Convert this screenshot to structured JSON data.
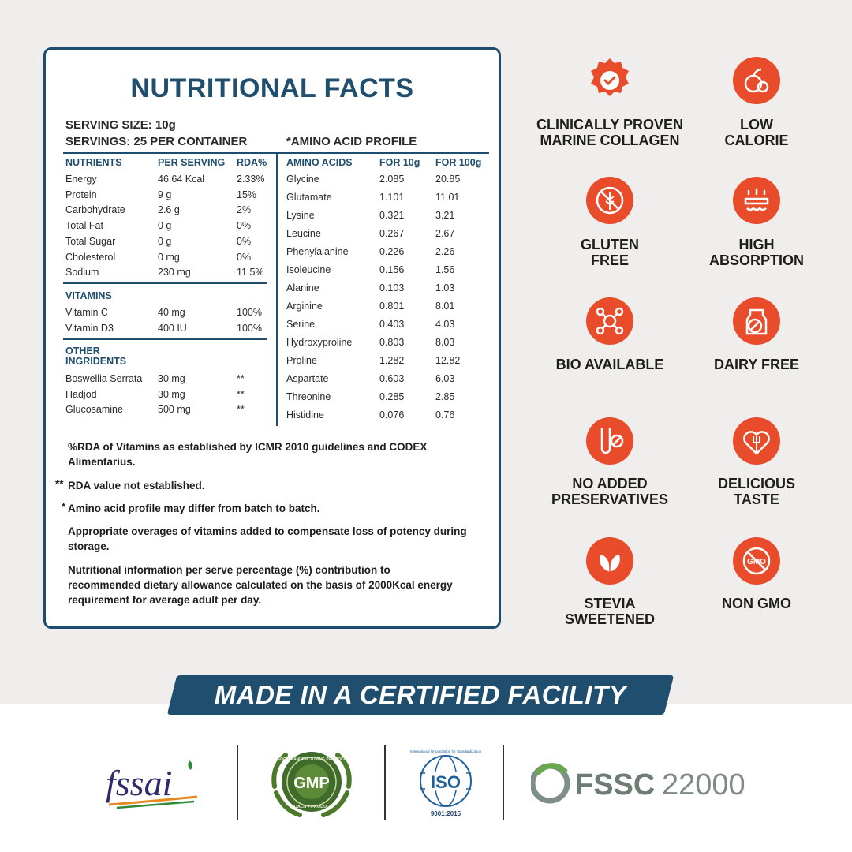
{
  "panel": {
    "title": "NUTRITIONAL FACTS",
    "serving_size": "SERVING SIZE: 10g",
    "servings": "SERVINGS: 25 PER CONTAINER",
    "amino_title": "*AMINO ACID PROFILE",
    "nutrients_headers": [
      "NUTRIENTS",
      "PER SERVING",
      "RDA%"
    ],
    "nutrients": [
      [
        "Energy",
        "46.64 Kcal",
        "2.33%"
      ],
      [
        "Protein",
        "9 g",
        "15%"
      ],
      [
        "Carbohydrate",
        "2.6 g",
        "2%"
      ],
      [
        "Total Fat",
        "0 g",
        "0%"
      ],
      [
        "Total Sugar",
        "0 g",
        "0%"
      ],
      [
        "Cholesterol",
        "0 mg",
        "0%"
      ],
      [
        "Sodium",
        "230 mg",
        "11.5%"
      ]
    ],
    "vitamins_header": "VITAMINS",
    "vitamins": [
      [
        "Vitamin C",
        "40 mg",
        "100%"
      ],
      [
        "Vitamin D3",
        "400 IU",
        "100%"
      ]
    ],
    "other_header": [
      "OTHER",
      "INGRIDENTS"
    ],
    "other": [
      [
        "Boswellia Serrata",
        "30 mg",
        "**"
      ],
      [
        "Hadjod",
        "30 mg",
        "**"
      ],
      [
        "Glucosamine",
        "500 mg",
        "**"
      ]
    ],
    "amino_headers": [
      "AMINO ACIDS",
      "FOR 10g",
      "FOR 100g"
    ],
    "amino": [
      [
        "Glycine",
        "2.085",
        "20.85"
      ],
      [
        "Glutamate",
        "1.101",
        "11.01"
      ],
      [
        "Lysine",
        "0.321",
        "3.21"
      ],
      [
        "Leucine",
        "0.267",
        "2.67"
      ],
      [
        "Phenylalanine",
        "0.226",
        "2.26"
      ],
      [
        "Isoleucine",
        "0.156",
        "1.56"
      ],
      [
        "Alanine",
        "0.103",
        "1.03"
      ],
      [
        "Arginine",
        "0.801",
        "8.01"
      ],
      [
        "Serine",
        "0.403",
        "4.03"
      ],
      [
        "Hydroxyproline",
        "0.803",
        "8.03"
      ],
      [
        "Proline",
        "1.282",
        "12.82"
      ],
      [
        "Aspartate",
        "0.603",
        "6.03"
      ],
      [
        "Threonine",
        "0.285",
        "2.85"
      ],
      [
        "Histidine",
        "0.076",
        "0.76"
      ]
    ],
    "notes": {
      "rda_1": "%RDA of Vitamins as established by ICMR 2010 guidelines and CODEX",
      "rda_2": "Alimentarius.",
      "na_mark": "**",
      "na": "RDA value not established.",
      "amino_mark": "*",
      "amino": "Amino acid profile may differ from batch to batch.",
      "overage_1": "Appropriate overages of vitamins added to compensate loss of potency during",
      "overage_2": "storage.",
      "info_1": "Nutritional information per serve percentage (%) contribution to",
      "info_2": "recommended dietary allowance calculated on the basis of 2000Kcal energy",
      "info_3": "requirement for average adult per day."
    }
  },
  "features": [
    {
      "icon": "badge-check-icon",
      "l1": "CLINICALLY PROVEN",
      "l2": "MARINE COLLAGEN"
    },
    {
      "icon": "fruit-icon",
      "l1": "LOW",
      "l2": "CALORIE"
    },
    {
      "icon": "wheat-crossed-icon",
      "l1": "GLUTEN",
      "l2": "FREE"
    },
    {
      "icon": "absorption-icon",
      "l1": "HIGH",
      "l2": "ABSORPTION"
    },
    {
      "icon": "molecule-icon",
      "l1": "BIO AVAILABLE",
      "l2": ""
    },
    {
      "icon": "milk-crossed-icon",
      "l1": "DAIRY FREE",
      "l2": ""
    },
    {
      "icon": "test-tube-crossed-icon",
      "l1": "NO ADDED",
      "l2": "PRESERVATIVES"
    },
    {
      "icon": "heart-fork-icon",
      "l1": "DELICIOUS",
      "l2": "TASTE"
    },
    {
      "icon": "leaf-icon",
      "l1": "STEVIA",
      "l2": "SWEETENED"
    },
    {
      "icon": "gmo-crossed-icon",
      "l1": "NON GMO",
      "l2": ""
    }
  ],
  "accent_color": "#e84c2b",
  "brand_blue": "#1f4e6f",
  "banner": "MADE IN A CERTIFIED FACILITY",
  "logos": {
    "fssai": "fssai",
    "gmp": "GMP",
    "gmp_ring_top": "GOOD MANUFACTURING PRACTICE",
    "gmp_ring_bottom": "QUALITY PRODUCT",
    "iso": "ISO",
    "iso_ring": "International Organization for Standardization",
    "iso_cert": "9001:2015",
    "fssc_a": "FSSC",
    "fssc_b": "22000"
  }
}
